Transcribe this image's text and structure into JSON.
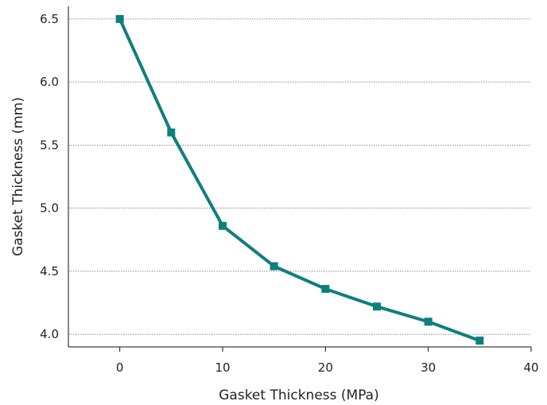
{
  "chart_data": {
    "type": "line",
    "title": "",
    "xlabel": "Gasket Thickness (MPa)",
    "ylabel": "Gasket Thickness (mm)",
    "xlim": [
      -5,
      40
    ],
    "ylim": [
      3.9,
      6.6
    ],
    "xticks": [
      0,
      10,
      20,
      30,
      40
    ],
    "yticks": [
      4.0,
      4.5,
      5.0,
      5.5,
      6.0,
      6.5
    ],
    "grid": "horizontal-dotted",
    "legend": "none",
    "series": [
      {
        "x": [
          0,
          5,
          10,
          15,
          20,
          25,
          30,
          35
        ],
        "y": [
          6.5,
          5.6,
          4.86,
          4.54,
          4.36,
          4.22,
          4.1,
          3.95
        ],
        "color": "#0f7f7c",
        "marker": "square"
      }
    ]
  }
}
